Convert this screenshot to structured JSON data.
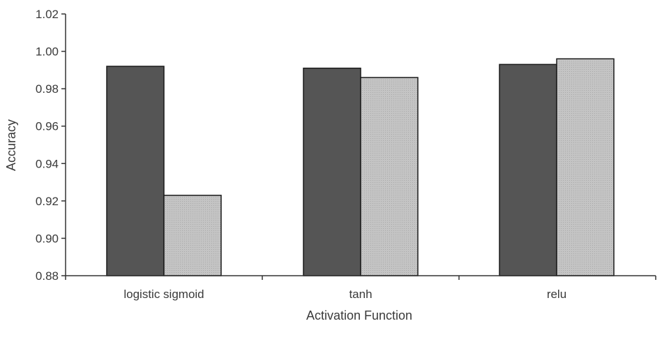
{
  "chart_data": {
    "type": "bar",
    "title": "",
    "xlabel": "Activation Function",
    "ylabel": "Accuracy",
    "categories": [
      "logistic sigmoid",
      "tanh",
      "relu"
    ],
    "series": [
      {
        "values": [
          0.992,
          0.991,
          0.993
        ],
        "color": "#555555"
      },
      {
        "values": [
          0.923,
          0.986,
          0.996
        ],
        "color": "#c2c2c2"
      }
    ],
    "ylim": [
      0.88,
      1.02
    ],
    "yticks": [
      0.88,
      0.9,
      0.92,
      0.94,
      0.96,
      0.98,
      1.0,
      1.02
    ],
    "ytick_labels": [
      "0.88",
      "0.90",
      "0.92",
      "0.94",
      "0.96",
      "0.98",
      "1.00",
      "1.02"
    ],
    "grid": false,
    "legend": "none"
  }
}
